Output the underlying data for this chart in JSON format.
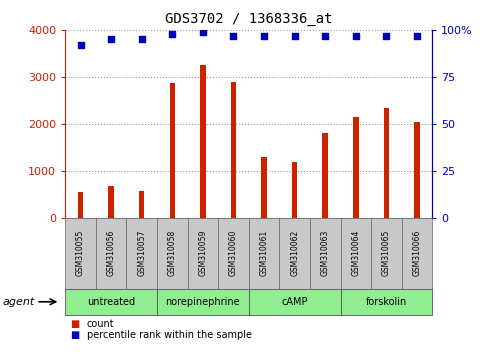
{
  "title": "GDS3702 / 1368336_at",
  "samples": [
    "GSM310055",
    "GSM310056",
    "GSM310057",
    "GSM310058",
    "GSM310059",
    "GSM310060",
    "GSM310061",
    "GSM310062",
    "GSM310063",
    "GSM310064",
    "GSM310065",
    "GSM310066"
  ],
  "counts": [
    540,
    670,
    560,
    2870,
    3260,
    2900,
    1300,
    1180,
    1800,
    2150,
    2330,
    2050
  ],
  "percentile_ranks": [
    92,
    95,
    95,
    98,
    99,
    97,
    97,
    97,
    97,
    97,
    97,
    97
  ],
  "groups": [
    {
      "label": "untreated",
      "start": 0,
      "end": 2
    },
    {
      "label": "norepinephrine",
      "start": 3,
      "end": 5
    },
    {
      "label": "cAMP",
      "start": 6,
      "end": 8
    },
    {
      "label": "forskolin",
      "start": 9,
      "end": 11
    }
  ],
  "bar_color": "#CC2200",
  "dot_color": "#0000BB",
  "ylim_left": [
    0,
    4000
  ],
  "ylim_right": [
    0,
    100
  ],
  "yticks_left": [
    0,
    1000,
    2000,
    3000,
    4000
  ],
  "yticks_right": [
    0,
    25,
    50,
    75,
    100
  ],
  "tick_color_left": "#CC2200",
  "tick_color_right": "#0000BB",
  "agent_label": "agent",
  "legend_count": "count",
  "legend_pct": "percentile rank within the sample",
  "group_color": "#90EE90",
  "sample_bg_color": "#c8c8c8",
  "bar_width": 0.18,
  "dot_size": 18,
  "grid_color": "#000000",
  "grid_alpha": 0.4,
  "grid_linestyle": ":"
}
